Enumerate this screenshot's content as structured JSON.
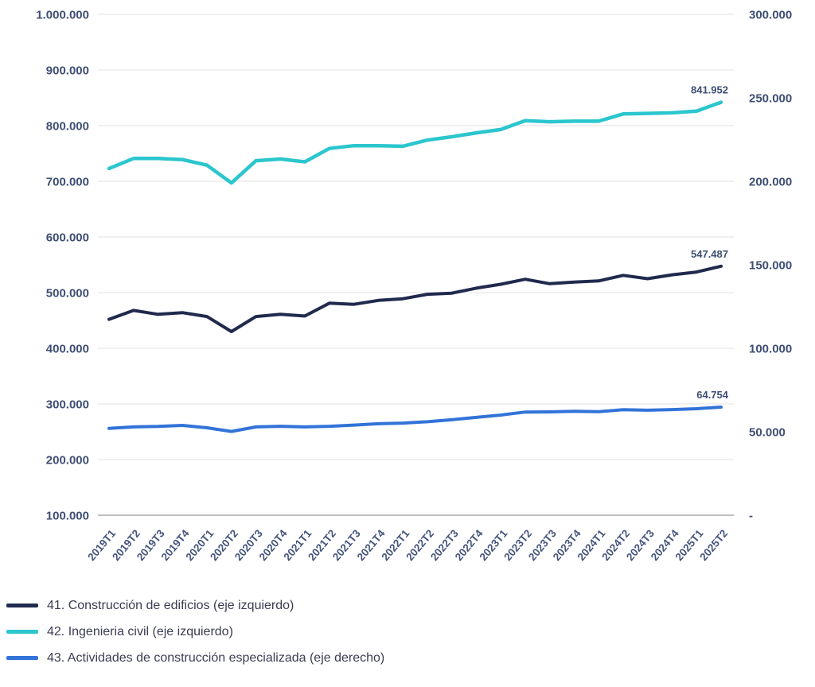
{
  "chart_data": {
    "type": "line",
    "title": "",
    "xlabel": "",
    "ylabel_left": "",
    "ylabel_right": "",
    "grid": true,
    "legend_position": "bottom-left",
    "categories": [
      "2019T1",
      "2019T2",
      "2019T3",
      "2019T4",
      "2020T1",
      "2020T2",
      "2020T3",
      "2020T4",
      "2021T1",
      "2021T2",
      "2021T3",
      "2021T4",
      "2022T1",
      "2022T2",
      "2022T3",
      "2022T4",
      "2023T1",
      "2023T2",
      "2023T3",
      "2023T4",
      "2024T1",
      "2024T2",
      "2024T3",
      "2024T4",
      "2025T1",
      "2025T2"
    ],
    "left_axis": {
      "min": 100000,
      "max": 1000000,
      "tick_labels": [
        "1.000.000",
        "900.000",
        "800.000",
        "700.000",
        "600.000",
        "500.000",
        "400.000",
        "300.000",
        "200.000",
        "100.000"
      ]
    },
    "right_axis": {
      "min": 0,
      "max": 300000,
      "tick_labels": [
        "300.000",
        "250.000",
        "200.000",
        "150.000",
        "100.000",
        "50.000",
        "-"
      ]
    },
    "series": [
      {
        "name": "41. Construcción de edificios (eje izquierdo)",
        "axis": "left",
        "color": "#1f2a4d",
        "stroke_width": 4,
        "end_label": "547.487",
        "values": [
          452000,
          468000,
          461000,
          464000,
          457000,
          430000,
          457000,
          461000,
          458000,
          481000,
          479000,
          486000,
          489000,
          497000,
          499000,
          508000,
          515000,
          524000,
          516000,
          519000,
          521000,
          531000,
          525000,
          532000,
          537000,
          547487
        ]
      },
      {
        "name": "42. Ingenieria civil (eje izquierdo)",
        "axis": "left",
        "color": "#2bc6ce",
        "stroke_width": 4.5,
        "end_label": "841.952",
        "values": [
          723000,
          741000,
          741000,
          739000,
          729000,
          697000,
          737000,
          740000,
          735000,
          759000,
          764000,
          764000,
          763000,
          774000,
          780000,
          787000,
          793000,
          809000,
          807000,
          808000,
          808000,
          821000,
          822000,
          823000,
          826000,
          841952
        ]
      },
      {
        "name": "43. Actividades de construcción especializada (eje derecho)",
        "axis": "right",
        "color": "#3273d8",
        "stroke_width": 4,
        "end_label": "64.754",
        "values": [
          52000,
          52900,
          53200,
          53800,
          52400,
          50200,
          52900,
          53300,
          52900,
          53300,
          54000,
          54800,
          55200,
          56000,
          57200,
          58600,
          60000,
          61800,
          61900,
          62300,
          62000,
          63200,
          62900,
          63300,
          63800,
          64754
        ]
      }
    ],
    "colors": {
      "gridline": "#e8e8e8",
      "axis_line": "#bfbfbf",
      "tick_text": "#3e4e74",
      "legend_text": "#3b3d52"
    }
  }
}
